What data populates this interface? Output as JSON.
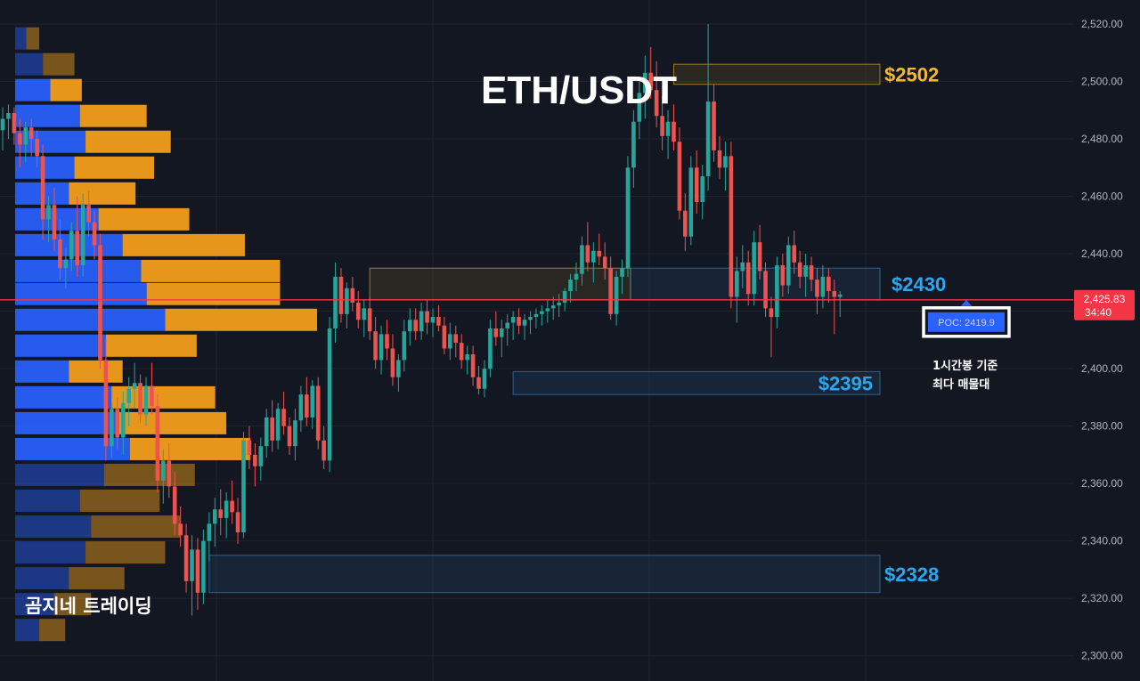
{
  "colors": {
    "background": "#131722",
    "up": "#26a69a",
    "down": "#ef5350",
    "profile_buy": "#2962ff",
    "profile_sell": "#f7a21b",
    "price_line": "#f23645",
    "zone_yellow": "#f5b82e",
    "zone_blue": "#3a8fd9",
    "label_blue": "#29a8f0"
  },
  "header": {
    "title": "ETH/USDT"
  },
  "footer": {
    "brand": "곰지네 트레이딩"
  },
  "price_marker": {
    "price": "2,425.83",
    "countdown": "34:40",
    "value": 2425.83
  },
  "poc": {
    "label": "POC: 2419.9",
    "value": 2419.9,
    "note_line1": "1시간봉 기준",
    "note_line2": "최다 매물대"
  },
  "zones": [
    {
      "label": "$2502",
      "kind": "yellow",
      "low": 2499,
      "high": 2506,
      "x_start": 117,
      "x_end": 176
    },
    {
      "label": "$2430",
      "kind": "mixed",
      "low": 2424,
      "high": 2435,
      "x_start": 64,
      "x_end": 176
    },
    {
      "label": "$2395",
      "kind": "blue",
      "low": 2391,
      "high": 2399,
      "x_start": 89,
      "x_end": 176
    },
    {
      "label": "$2328",
      "kind": "blue",
      "low": 2322,
      "high": 2335,
      "x_start": 36,
      "x_end": 176
    }
  ],
  "chart_data": {
    "type": "candlestick",
    "symbol": "ETH/USDT",
    "timeframe": "1h",
    "ylim": [
      2296,
      2524
    ],
    "y_ticks": [
      "2,520.00",
      "2,500.00",
      "2,480.00",
      "2,460.00",
      "2,440.00",
      "2,420.00",
      "2,400.00",
      "2,380.00",
      "2,360.00",
      "2,340.00",
      "2,320.00",
      "2,300.00"
    ],
    "y_tick_values": [
      2520,
      2500,
      2480,
      2460,
      2440,
      2420,
      2400,
      2380,
      2360,
      2340,
      2320,
      2300
    ],
    "last_price": 2425.83,
    "candles_ohlc": [
      [
        2483,
        2491,
        2476,
        2487
      ],
      [
        2487,
        2492,
        2480,
        2489
      ],
      [
        2489,
        2491,
        2478,
        2482
      ],
      [
        2482,
        2487,
        2470,
        2478
      ],
      [
        2478,
        2486,
        2472,
        2484
      ],
      [
        2484,
        2487,
        2474,
        2480
      ],
      [
        2480,
        2483,
        2470,
        2474
      ],
      [
        2474,
        2478,
        2445,
        2452
      ],
      [
        2452,
        2460,
        2444,
        2457
      ],
      [
        2457,
        2463,
        2441,
        2445
      ],
      [
        2445,
        2452,
        2431,
        2435
      ],
      [
        2435,
        2442,
        2428,
        2438
      ],
      [
        2438,
        2451,
        2434,
        2448
      ],
      [
        2448,
        2460,
        2432,
        2436
      ],
      [
        2436,
        2461,
        2432,
        2457
      ],
      [
        2457,
        2462,
        2446,
        2451
      ],
      [
        2451,
        2455,
        2438,
        2443
      ],
      [
        2443,
        2447,
        2400,
        2403
      ],
      [
        2403,
        2410,
        2368,
        2373
      ],
      [
        2373,
        2388,
        2369,
        2386
      ],
      [
        2386,
        2390,
        2372,
        2376
      ],
      [
        2376,
        2392,
        2370,
        2388
      ],
      [
        2388,
        2397,
        2380,
        2393
      ],
      [
        2393,
        2402,
        2386,
        2395
      ],
      [
        2395,
        2398,
        2381,
        2384
      ],
      [
        2384,
        2397,
        2380,
        2394
      ],
      [
        2394,
        2402,
        2384,
        2387
      ],
      [
        2387,
        2391,
        2357,
        2361
      ],
      [
        2361,
        2372,
        2353,
        2368
      ],
      [
        2368,
        2374,
        2355,
        2359
      ],
      [
        2359,
        2364,
        2342,
        2346
      ],
      [
        2346,
        2352,
        2338,
        2342
      ],
      [
        2342,
        2346,
        2322,
        2326
      ],
      [
        2326,
        2342,
        2314,
        2337
      ],
      [
        2337,
        2341,
        2316,
        2322
      ],
      [
        2322,
        2344,
        2318,
        2340
      ],
      [
        2340,
        2350,
        2333,
        2346
      ],
      [
        2346,
        2355,
        2338,
        2351
      ],
      [
        2351,
        2358,
        2342,
        2348
      ],
      [
        2348,
        2357,
        2341,
        2354
      ],
      [
        2354,
        2361,
        2346,
        2350
      ],
      [
        2350,
        2355,
        2339,
        2343
      ],
      [
        2343,
        2378,
        2341,
        2375
      ],
      [
        2375,
        2380,
        2365,
        2370
      ],
      [
        2370,
        2374,
        2359,
        2366
      ],
      [
        2366,
        2376,
        2361,
        2373
      ],
      [
        2373,
        2386,
        2369,
        2383
      ],
      [
        2383,
        2389,
        2371,
        2375
      ],
      [
        2375,
        2388,
        2372,
        2386
      ],
      [
        2386,
        2392,
        2377,
        2380
      ],
      [
        2380,
        2383,
        2370,
        2373
      ],
      [
        2373,
        2386,
        2368,
        2382
      ],
      [
        2382,
        2394,
        2378,
        2391
      ],
      [
        2391,
        2397,
        2380,
        2383
      ],
      [
        2383,
        2396,
        2379,
        2394
      ],
      [
        2394,
        2397,
        2372,
        2375
      ],
      [
        2375,
        2380,
        2365,
        2368
      ],
      [
        2368,
        2418,
        2364,
        2414
      ],
      [
        2414,
        2437,
        2409,
        2432
      ],
      [
        2432,
        2435,
        2416,
        2419
      ],
      [
        2419,
        2430,
        2414,
        2428
      ],
      [
        2428,
        2432,
        2420,
        2423
      ],
      [
        2423,
        2427,
        2414,
        2417
      ],
      [
        2417,
        2424,
        2411,
        2421
      ],
      [
        2421,
        2425,
        2410,
        2413
      ],
      [
        2413,
        2418,
        2400,
        2403
      ],
      [
        2403,
        2415,
        2398,
        2412
      ],
      [
        2412,
        2417,
        2403,
        2407
      ],
      [
        2407,
        2412,
        2394,
        2397
      ],
      [
        2397,
        2405,
        2392,
        2403
      ],
      [
        2403,
        2417,
        2399,
        2413
      ],
      [
        2413,
        2421,
        2408,
        2417
      ],
      [
        2417,
        2421,
        2410,
        2413
      ],
      [
        2413,
        2423,
        2410,
        2420
      ],
      [
        2420,
        2424,
        2412,
        2416
      ],
      [
        2416,
        2421,
        2411,
        2418
      ],
      [
        2418,
        2422,
        2413,
        2415
      ],
      [
        2415,
        2418,
        2405,
        2407
      ],
      [
        2407,
        2416,
        2403,
        2412
      ],
      [
        2412,
        2415,
        2404,
        2409
      ],
      [
        2409,
        2412,
        2400,
        2403
      ],
      [
        2403,
        2408,
        2398,
        2405
      ],
      [
        2405,
        2408,
        2394,
        2397
      ],
      [
        2397,
        2401,
        2391,
        2393
      ],
      [
        2393,
        2403,
        2390,
        2400
      ],
      [
        2400,
        2417,
        2397,
        2414
      ],
      [
        2414,
        2420,
        2408,
        2411
      ],
      [
        2411,
        2417,
        2404,
        2414
      ],
      [
        2414,
        2419,
        2408,
        2416
      ],
      [
        2416,
        2420,
        2410,
        2418
      ],
      [
        2418,
        2421,
        2412,
        2415
      ],
      [
        2415,
        2419,
        2410,
        2417
      ],
      [
        2417,
        2420,
        2412,
        2418
      ],
      [
        2418,
        2421,
        2414,
        2419
      ],
      [
        2419,
        2422,
        2415,
        2420
      ],
      [
        2420,
        2424,
        2416,
        2421
      ],
      [
        2421,
        2425,
        2417,
        2422
      ],
      [
        2422,
        2426,
        2418,
        2423
      ],
      [
        2423,
        2428,
        2420,
        2427
      ],
      [
        2427,
        2433,
        2423,
        2431
      ],
      [
        2431,
        2437,
        2427,
        2433
      ],
      [
        2433,
        2446,
        2429,
        2443
      ],
      [
        2443,
        2451,
        2434,
        2437
      ],
      [
        2437,
        2444,
        2430,
        2441
      ],
      [
        2441,
        2447,
        2436,
        2439
      ],
      [
        2439,
        2444,
        2431,
        2435
      ],
      [
        2435,
        2439,
        2417,
        2419
      ],
      [
        2419,
        2434,
        2415,
        2432
      ],
      [
        2432,
        2438,
        2426,
        2435
      ],
      [
        2435,
        2474,
        2432,
        2470
      ],
      [
        2470,
        2490,
        2463,
        2486
      ],
      [
        2486,
        2500,
        2480,
        2496
      ],
      [
        2496,
        2509,
        2487,
        2503
      ],
      [
        2503,
        2512,
        2494,
        2497
      ],
      [
        2497,
        2507,
        2484,
        2488
      ],
      [
        2488,
        2495,
        2476,
        2481
      ],
      [
        2481,
        2490,
        2473,
        2486
      ],
      [
        2486,
        2492,
        2476,
        2479
      ],
      [
        2479,
        2484,
        2452,
        2455
      ],
      [
        2455,
        2461,
        2441,
        2446
      ],
      [
        2446,
        2474,
        2443,
        2470
      ],
      [
        2470,
        2476,
        2454,
        2458
      ],
      [
        2458,
        2471,
        2452,
        2467
      ],
      [
        2467,
        2520,
        2462,
        2493
      ],
      [
        2493,
        2499,
        2472,
        2476
      ],
      [
        2476,
        2481,
        2466,
        2470
      ],
      [
        2470,
        2479,
        2462,
        2474
      ],
      [
        2474,
        2479,
        2421,
        2425
      ],
      [
        2425,
        2439,
        2416,
        2434
      ],
      [
        2434,
        2443,
        2428,
        2437
      ],
      [
        2437,
        2441,
        2422,
        2426
      ],
      [
        2426,
        2448,
        2422,
        2444
      ],
      [
        2444,
        2450,
        2431,
        2434
      ],
      [
        2434,
        2437,
        2418,
        2421
      ],
      [
        2421,
        2425,
        2404,
        2418
      ],
      [
        2418,
        2439,
        2414,
        2436
      ],
      [
        2436,
        2440,
        2425,
        2429
      ],
      [
        2429,
        2446,
        2426,
        2443
      ],
      [
        2443,
        2448,
        2433,
        2437
      ],
      [
        2437,
        2441,
        2428,
        2432
      ],
      [
        2432,
        2440,
        2425,
        2436
      ],
      [
        2436,
        2439,
        2427,
        2431
      ],
      [
        2431,
        2435,
        2419,
        2425
      ],
      [
        2425,
        2436,
        2421,
        2432
      ],
      [
        2432,
        2435,
        2423,
        2427
      ],
      [
        2427,
        2431,
        2412,
        2425
      ],
      [
        2425,
        2427,
        2418,
        2425.83
      ]
    ],
    "volume_profile": [
      {
        "price": 2515,
        "buy": 12,
        "sell": 14
      },
      {
        "price": 2506,
        "buy": 30,
        "sell": 34
      },
      {
        "price": 2497,
        "buy": 38,
        "sell": 34
      },
      {
        "price": 2488,
        "buy": 70,
        "sell": 72
      },
      {
        "price": 2479,
        "buy": 76,
        "sell": 92
      },
      {
        "price": 2470,
        "buy": 64,
        "sell": 86
      },
      {
        "price": 2461,
        "buy": 58,
        "sell": 72
      },
      {
        "price": 2452,
        "buy": 90,
        "sell": 98
      },
      {
        "price": 2443,
        "buy": 116,
        "sell": 132
      },
      {
        "price": 2434,
        "buy": 136,
        "sell": 150
      },
      {
        "price": 2426,
        "buy": 142,
        "sell": 144
      },
      {
        "price": 2417,
        "buy": 162,
        "sell": 164
      },
      {
        "price": 2408,
        "buy": 98,
        "sell": 98
      },
      {
        "price": 2399,
        "buy": 58,
        "sell": 58
      },
      {
        "price": 2390,
        "buy": 104,
        "sell": 112
      },
      {
        "price": 2381,
        "buy": 110,
        "sell": 118
      },
      {
        "price": 2372,
        "buy": 124,
        "sell": 130
      },
      {
        "price": 2363,
        "buy": 96,
        "sell": 98
      },
      {
        "price": 2354,
        "buy": 70,
        "sell": 86
      },
      {
        "price": 2345,
        "buy": 82,
        "sell": 96
      },
      {
        "price": 2336,
        "buy": 76,
        "sell": 86
      },
      {
        "price": 2327,
        "buy": 58,
        "sell": 60
      },
      {
        "price": 2318,
        "buy": 42,
        "sell": 40
      },
      {
        "price": 2309,
        "buy": 26,
        "sell": 28
      }
    ]
  }
}
